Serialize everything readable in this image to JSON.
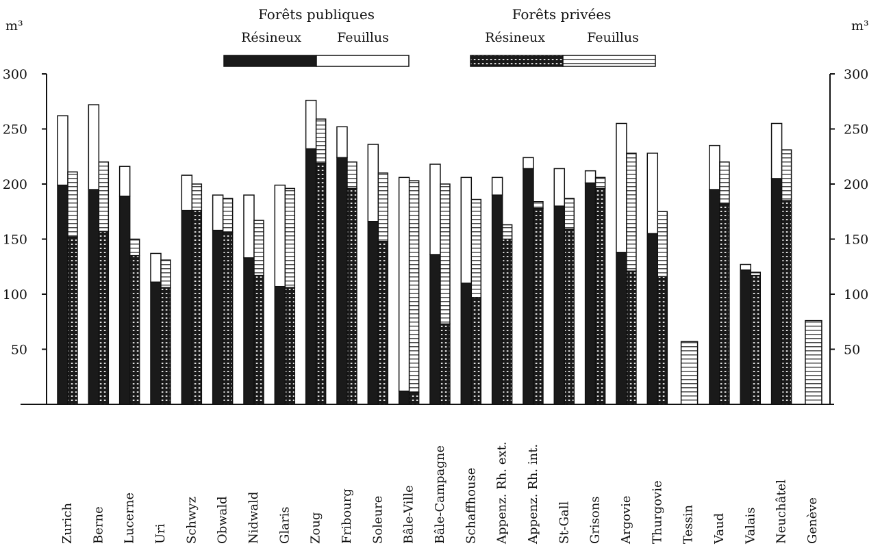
{
  "chart_data": {
    "type": "bar",
    "unit_left": "m³",
    "unit_right": "m³",
    "ylim": [
      0,
      300
    ],
    "yticks": [
      50,
      100,
      150,
      200,
      250,
      300
    ],
    "legend": {
      "public_title": "Forêts publiques",
      "private_title": "Forêts privées",
      "resineux": "Résineux",
      "feuillus": "Feuillus"
    },
    "categories": [
      "Zurich",
      "Berne",
      "Lucerne",
      "Uri",
      "Schwyz",
      "Obwald",
      "Nidwald",
      "Glaris",
      "Zoug",
      "Fribourg",
      "Soleure",
      "Bâle-Ville",
      "Bâle-Campagne",
      "Schaffhouse",
      "Appenz. Rh. ext.",
      "Appenz. Rh. int.",
      "St-Gall",
      "Grisons",
      "Argovie",
      "Thurgovie",
      "Tessin",
      "Vaud",
      "Valais",
      "Neuchâtel",
      "Genève"
    ],
    "series": [
      {
        "name": "Forêts publiques — Résineux",
        "values": [
          199,
          195,
          189,
          111,
          176,
          158,
          133,
          107,
          232,
          224,
          166,
          12,
          136,
          110,
          190,
          214,
          180,
          201,
          138,
          155,
          null,
          195,
          122,
          205,
          null
        ]
      },
      {
        "name": "Forêts publiques — Feuillus",
        "values": [
          63,
          77,
          27,
          26,
          32,
          32,
          57,
          92,
          44,
          28,
          70,
          194,
          82,
          96,
          16,
          10,
          34,
          11,
          117,
          73,
          null,
          40,
          5,
          50,
          null
        ]
      },
      {
        "name": "Forêts privées — Résineux",
        "values": [
          152,
          157,
          135,
          106,
          176,
          156,
          117,
          106,
          219,
          196,
          148,
          11,
          73,
          97,
          150,
          178,
          159,
          196,
          121,
          116,
          0,
          182,
          117,
          185,
          0
        ]
      },
      {
        "name": "Forêts privées — Feuillus",
        "values": [
          59,
          63,
          15,
          25,
          24,
          31,
          50,
          90,
          40,
          24,
          62,
          192,
          127,
          89,
          13,
          6,
          28,
          10,
          107,
          59,
          57,
          38,
          3,
          46,
          76
        ]
      }
    ],
    "colors": {
      "resineux": "#1a1a1a",
      "feuillus": "#ffffff",
      "stroke": "#111111"
    }
  }
}
